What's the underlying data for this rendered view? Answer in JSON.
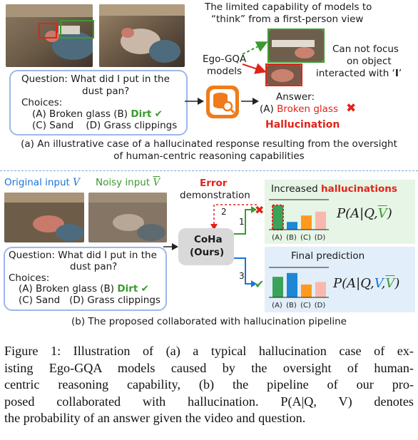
{
  "part_a": {
    "title_line1": "The limited capability of models to",
    "title_line2": "“think” from a first-person view",
    "model_label_line1": "Ego-GQA",
    "model_label_line2": "models",
    "focus_note_line1": "Can not focus",
    "focus_note_line2": "on object",
    "focus_note_line3_prefix": "interacted with ‘",
    "focus_note_line3_em": "I",
    "focus_note_line3_suffix": "’",
    "question_line1": "Question: What did I put in the",
    "question_line2": "dust pan?",
    "choices_label": "Choices:",
    "choice_a": "(A) Broken glass",
    "choice_b": "(B)",
    "choice_b_answer": "Dirt",
    "choice_c": "(C) Sand",
    "choice_d": "(D) Grass clippings",
    "answer_label": "Answer:",
    "answer_prefix": "(A)",
    "answer_value": "Broken glass",
    "hallucination_label": "Hallucination",
    "caption_line1": "(a) An illustrative case of a hallucinated response resulting from the oversight",
    "caption_line2": "of human-centric reasoning capabilities"
  },
  "part_b": {
    "original_label": "Original input",
    "original_symbol": "V",
    "noisy_label": "Noisy input",
    "noisy_symbol": "V",
    "error_label": "Error",
    "demo_label": "demonstration",
    "model_name": "CoHa",
    "model_sub": "(Ours)",
    "step_1": "1",
    "step_2": "2",
    "step_3": "3",
    "panel_top_title_prefix": "Increased",
    "panel_top_title_em": "hallucinations",
    "panel_bottom_title": "Final prediction",
    "formula_top": "P(A|Q,V)",
    "formula_bottom": "P(A|Q,V,V)",
    "bar_labels": [
      "(A)",
      "(B)",
      "(C)",
      "(D)"
    ],
    "question_line1": "Question: What did I put in the",
    "question_line2": "dust pan?",
    "choices_label": "Choices:",
    "choice_a": "(A) Broken glass",
    "choice_b": "(B)",
    "choice_b_answer": "Dirt",
    "choice_c": "(C) Sand",
    "choice_d": "(D) Grass clippings",
    "caption": "(b) The proposed collaborated with hallucination pipeline"
  },
  "chart_data": [
    {
      "type": "bar",
      "title": "Increased hallucinations",
      "categories": [
        "(A)",
        "(B)",
        "(C)",
        "(D)"
      ],
      "values": [
        0.95,
        0.3,
        0.55,
        0.7
      ],
      "colors": [
        "#3aa35a",
        "#1e88d6",
        "#ff9a1f",
        "#f9b8ad"
      ]
    },
    {
      "type": "bar",
      "title": "Final prediction",
      "categories": [
        "(A)",
        "(B)",
        "(C)",
        "(D)"
      ],
      "values": [
        0.8,
        0.95,
        0.5,
        0.6
      ],
      "colors": [
        "#3aa35a",
        "#1e88d6",
        "#ff9a1f",
        "#f9b8ad"
      ]
    }
  ],
  "figure_caption": {
    "line1": "Figure 1: Illustration of (a) a typical hallucination case of ex-",
    "line2": "isting Ego-GQA models caused by the oversight of human-",
    "line3": "centric reasoning capability, (b) the pipeline of our pro-",
    "line4": "posed collaborated with hallucination. P(A|Q, V) denotes",
    "line5": "the probability of an answer given the video and question."
  },
  "colors": {
    "red": "#e2231a",
    "green": "#3a9a2f",
    "blue": "#1a73d9",
    "orange": "#f07b1a",
    "panel_green": "#e6f5e6",
    "panel_blue": "#e2eef9"
  }
}
